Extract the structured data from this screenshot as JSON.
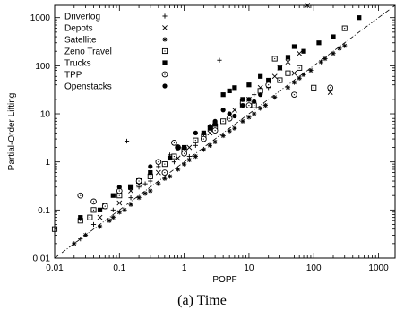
{
  "chart_data": {
    "type": "scatter",
    "title": "",
    "xlabel": "POPF",
    "ylabel": "Partial-Order Lifting",
    "xscale": "log",
    "yscale": "log",
    "xlim": [
      0.01,
      1800
    ],
    "ylim": [
      0.01,
      1800
    ],
    "xticks": [
      {
        "value": 0.01,
        "label": "0.01"
      },
      {
        "value": 0.1,
        "label": "0.1"
      },
      {
        "value": 1,
        "label": "1"
      },
      {
        "value": 10,
        "label": "10"
      },
      {
        "value": 100,
        "label": "100"
      },
      {
        "value": 1000,
        "label": "1000"
      }
    ],
    "yticks": [
      {
        "value": 0.01,
        "label": "0.01"
      },
      {
        "value": 0.1,
        "label": "0.1"
      },
      {
        "value": 1,
        "label": "1"
      },
      {
        "value": 10,
        "label": "10"
      },
      {
        "value": 100,
        "label": "100"
      },
      {
        "value": 1000,
        "label": "1000"
      }
    ],
    "grid": false,
    "legend_position": "top-left",
    "reference_line": "y = x",
    "series": [
      {
        "name": "Driverlog",
        "marker": "plus",
        "points": [
          [
            0.13,
            2.7
          ],
          [
            0.025,
            0.025
          ],
          [
            0.04,
            0.05
          ],
          [
            0.08,
            0.1
          ],
          [
            0.15,
            0.18
          ],
          [
            0.2,
            0.3
          ],
          [
            0.3,
            0.4
          ],
          [
            0.5,
            0.6
          ],
          [
            0.7,
            1.0
          ],
          [
            1.0,
            1.5
          ],
          [
            1.5,
            2.2
          ],
          [
            2.0,
            3.0
          ],
          [
            3.0,
            5.0
          ],
          [
            5.0,
            8.0
          ],
          [
            4.0,
            7.0
          ],
          [
            8.0,
            15.0
          ],
          [
            12.0,
            25.0
          ],
          [
            20.0,
            35.0
          ],
          [
            3.5,
            130.0
          ],
          [
            0.06,
            0.12
          ],
          [
            0.1,
            0.2
          ],
          [
            0.4,
            0.8
          ],
          [
            0.25,
            0.35
          ],
          [
            0.6,
            1.4
          ],
          [
            1.2,
            1.3
          ]
        ]
      },
      {
        "name": "Depots",
        "marker": "x",
        "points": [
          [
            0.05,
            0.07
          ],
          [
            0.1,
            0.14
          ],
          [
            0.2,
            0.35
          ],
          [
            0.4,
            0.6
          ],
          [
            0.8,
            1.2
          ],
          [
            1.2,
            2.0
          ],
          [
            2.5,
            4.0
          ],
          [
            4.0,
            7.0
          ],
          [
            6.0,
            12.0
          ],
          [
            10.0,
            20.0
          ],
          [
            15.0,
            35.0
          ],
          [
            25.0,
            60.0
          ],
          [
            40.0,
            120.0
          ],
          [
            60.0,
            180.0
          ],
          [
            80.0,
            1800.0
          ],
          [
            180.0,
            28.0
          ],
          [
            0.3,
            0.5
          ],
          [
            0.15,
            0.25
          ],
          [
            30.0,
            90.0
          ],
          [
            50.0,
            70.0
          ]
        ]
      },
      {
        "name": "Satellite",
        "marker": "asterisk",
        "points": [
          [
            0.02,
            0.02
          ],
          [
            0.03,
            0.03
          ],
          [
            0.05,
            0.045
          ],
          [
            0.07,
            0.06
          ],
          [
            0.1,
            0.09
          ],
          [
            0.15,
            0.13
          ],
          [
            0.2,
            0.18
          ],
          [
            0.3,
            0.25
          ],
          [
            0.4,
            0.35
          ],
          [
            0.6,
            0.5
          ],
          [
            0.8,
            0.7
          ],
          [
            1.0,
            0.9
          ],
          [
            1.5,
            1.3
          ],
          [
            2.0,
            1.8
          ],
          [
            3.0,
            2.6
          ],
          [
            4.0,
            3.5
          ],
          [
            6.0,
            5.0
          ],
          [
            8.0,
            7.0
          ],
          [
            12.0,
            10.0
          ],
          [
            18.0,
            15.0
          ],
          [
            25.0,
            22.0
          ],
          [
            40.0,
            35.0
          ],
          [
            60.0,
            55.0
          ],
          [
            90.0,
            80.0
          ],
          [
            130.0,
            120.0
          ],
          [
            200.0,
            180.0
          ],
          [
            300.0,
            260.0
          ],
          [
            0.12,
            0.1
          ],
          [
            0.5,
            0.45
          ],
          [
            2.5,
            2.2
          ],
          [
            10.0,
            8.5
          ],
          [
            50.0,
            45.0
          ],
          [
            150.0,
            140.0
          ],
          [
            250.0,
            230.0
          ],
          [
            0.08,
            0.07
          ],
          [
            0.25,
            0.22
          ],
          [
            1.2,
            1.1
          ],
          [
            5.0,
            4.4
          ],
          [
            15.0,
            13.0
          ],
          [
            70.0,
            65.0
          ]
        ]
      },
      {
        "name": "Zeno Travel",
        "marker": "square-dot",
        "points": [
          [
            0.01,
            0.04
          ],
          [
            0.025,
            0.06
          ],
          [
            0.04,
            0.1
          ],
          [
            0.06,
            0.12
          ],
          [
            0.1,
            0.2
          ],
          [
            0.15,
            0.3
          ],
          [
            0.3,
            0.5
          ],
          [
            0.5,
            0.9
          ],
          [
            1.0,
            1.8
          ],
          [
            2.0,
            3.5
          ],
          [
            4.0,
            7.0
          ],
          [
            8.0,
            15.0
          ],
          [
            15.0,
            30.0
          ],
          [
            25.0,
            140.0
          ],
          [
            30.0,
            50.0
          ],
          [
            60.0,
            90.0
          ],
          [
            100.0,
            35.0
          ],
          [
            8.0,
            18.0
          ],
          [
            3.0,
            5.5
          ],
          [
            0.7,
            1.3
          ],
          [
            0.2,
            0.4
          ],
          [
            1.5,
            2.8
          ],
          [
            40.0,
            70.0
          ],
          [
            300.0,
            600.0
          ],
          [
            12.0,
            15.0
          ],
          [
            0.035,
            0.07
          ]
        ]
      },
      {
        "name": "Trucks",
        "marker": "filled-square",
        "points": [
          [
            0.025,
            0.07
          ],
          [
            0.05,
            0.1
          ],
          [
            0.08,
            0.2
          ],
          [
            0.15,
            0.3
          ],
          [
            0.3,
            0.6
          ],
          [
            0.6,
            1.2
          ],
          [
            1.0,
            2.0
          ],
          [
            2.0,
            4.0
          ],
          [
            3.0,
            6.0
          ],
          [
            5.0,
            30.0
          ],
          [
            8.0,
            20.0
          ],
          [
            15.0,
            60.0
          ],
          [
            20.0,
            50.0
          ],
          [
            30.0,
            90.0
          ],
          [
            40.0,
            150.0
          ],
          [
            70.0,
            200.0
          ],
          [
            120.0,
            300.0
          ],
          [
            200.0,
            400.0
          ],
          [
            500.0,
            1000.0
          ],
          [
            4.0,
            25.0
          ],
          [
            6.0,
            35.0
          ],
          [
            2.5,
            5.0
          ],
          [
            10.0,
            40.0
          ],
          [
            50.0,
            250.0
          ]
        ]
      },
      {
        "name": "TPP",
        "marker": "circle-dot",
        "points": [
          [
            0.025,
            0.2
          ],
          [
            0.04,
            0.15
          ],
          [
            0.06,
            0.12
          ],
          [
            0.1,
            0.25
          ],
          [
            0.2,
            0.4
          ],
          [
            0.4,
            1.0
          ],
          [
            0.7,
            2.5
          ],
          [
            1.0,
            1.5
          ],
          [
            2.0,
            3.0
          ],
          [
            5.0,
            8.0
          ],
          [
            10.0,
            15.0
          ],
          [
            20.0,
            40.0
          ],
          [
            50.0,
            25.0
          ],
          [
            180.0,
            35.0
          ],
          [
            0.5,
            0.6
          ],
          [
            3.0,
            4.5
          ],
          [
            0.8,
            2.0
          ]
        ]
      },
      {
        "name": "Openstacks",
        "marker": "filled-circle",
        "points": [
          [
            0.1,
            0.3
          ],
          [
            0.3,
            0.8
          ],
          [
            0.8,
            2.0
          ],
          [
            1.5,
            4.0
          ],
          [
            3.0,
            7.0
          ],
          [
            5.0,
            10.0
          ],
          [
            8.0,
            15.0
          ],
          [
            10.0,
            20.0
          ],
          [
            15.0,
            25.0
          ],
          [
            4.0,
            12.0
          ],
          [
            6.0,
            9.0
          ],
          [
            2.5,
            5.5
          ],
          [
            12.0,
            18.0
          ]
        ]
      }
    ]
  },
  "caption": "(a) Time"
}
